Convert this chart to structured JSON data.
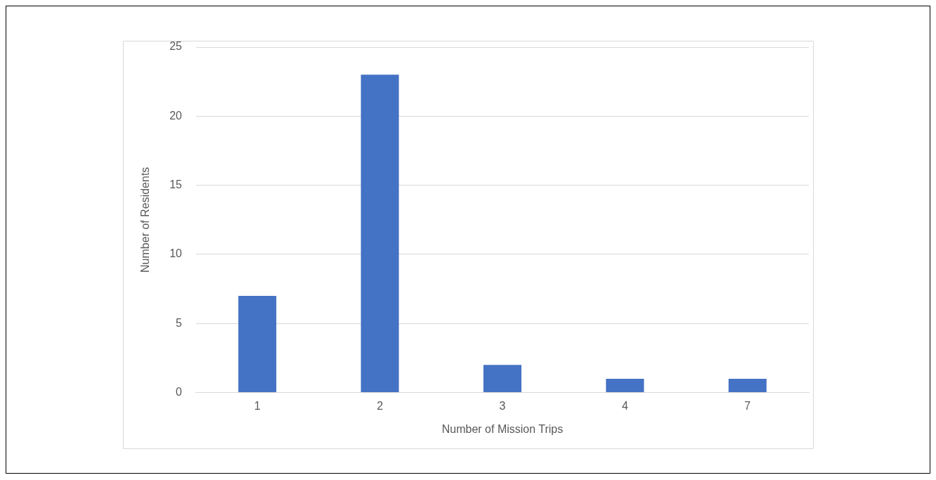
{
  "chart_data": {
    "type": "bar",
    "xlabel": "Number of Mission Trips",
    "ylabel": "Number of Residents",
    "categories": [
      "1",
      "2",
      "3",
      "4",
      "7"
    ],
    "values": [
      7,
      23,
      2,
      1,
      1
    ],
    "color": "#4472c4",
    "ylim": [
      0,
      25
    ],
    "yticks": [
      0,
      5,
      10,
      15,
      20,
      25
    ],
    "grid": "y",
    "legend": false
  }
}
